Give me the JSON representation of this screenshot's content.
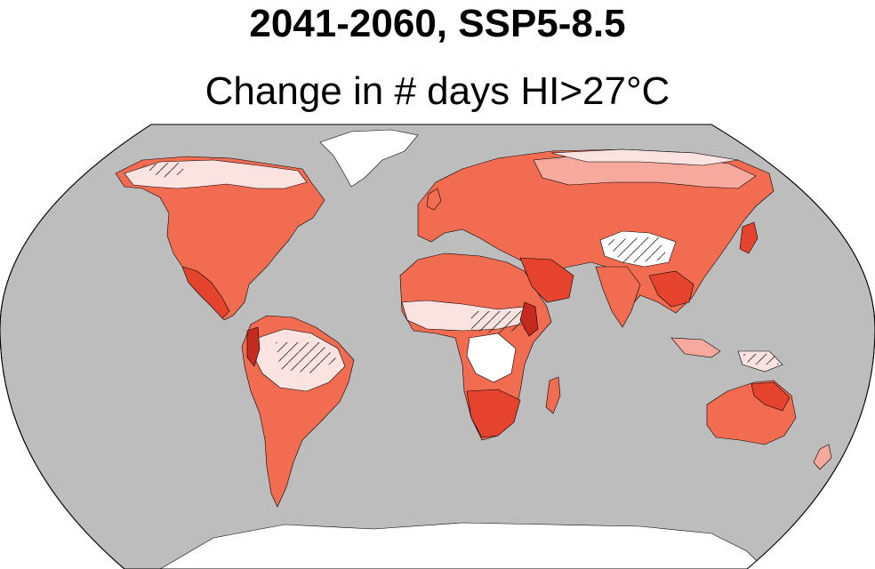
{
  "figure": {
    "title": "2041-2060, SSP5-8.5",
    "subtitle": "Change in # days HI>27°C"
  },
  "map": {
    "projection": "robinson",
    "ocean_color": "#bdbdbd",
    "outline_color": "#000000",
    "ice_color": "#ffffff",
    "palette": {
      "very_low": "#fbe3e1",
      "low": "#f6a99c",
      "medium": "#f26c52",
      "high": "#e5432d",
      "very_high": "#c52a1e"
    },
    "hatch_meaning_shown": false
  }
}
